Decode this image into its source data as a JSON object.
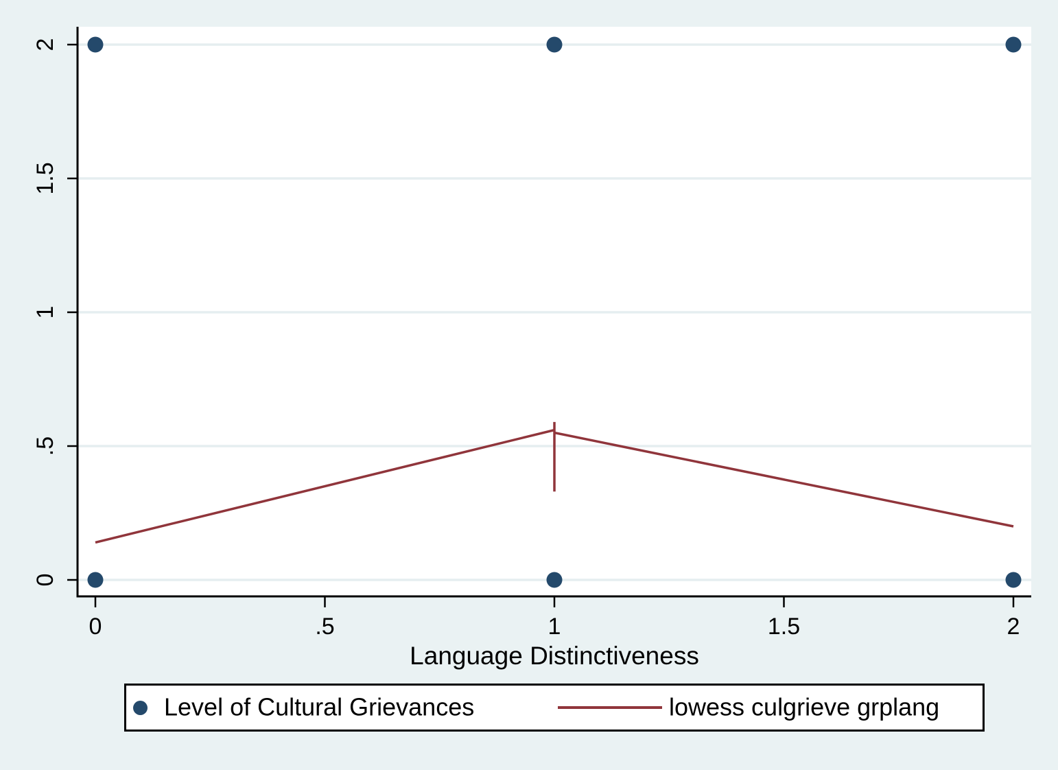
{
  "colors": {
    "background": "#eaf2f3",
    "plot_background": "#ffffff",
    "gridline": "#e5eef0",
    "axis": "#000000",
    "navy": "#24496b",
    "maroon": "#90353b"
  },
  "chart_data": {
    "type": "scatter",
    "title": "",
    "xlabel": "Language Distinctiveness",
    "ylabel": "",
    "xlim": [
      0,
      2
    ],
    "ylim": [
      0,
      2
    ],
    "grid": "horizontal",
    "legend_position": "bottom",
    "x_ticks": {
      "values": [
        0,
        0.5,
        1,
        1.5,
        2
      ],
      "labels": [
        "0",
        ".5",
        "1",
        "1.5",
        "2"
      ]
    },
    "y_ticks": {
      "values": [
        0,
        0.5,
        1,
        1.5,
        2
      ],
      "labels": [
        "0",
        ".5",
        "1",
        "1.5",
        "2"
      ]
    },
    "series": [
      {
        "name": "Level of Cultural Grievances",
        "type": "scatter",
        "color": "#24496b",
        "points": [
          [
            0,
            0
          ],
          [
            0,
            2
          ],
          [
            1,
            0
          ],
          [
            1,
            2
          ],
          [
            2,
            0
          ],
          [
            2,
            2
          ]
        ]
      },
      {
        "name": "lowess culgrieve grplang",
        "type": "line",
        "color": "#90353b",
        "points": [
          [
            0,
            0.14
          ],
          [
            1,
            0.56
          ],
          [
            1,
            0.59
          ],
          [
            1,
            0.33
          ],
          [
            1,
            0.55
          ],
          [
            2,
            0.2
          ]
        ]
      }
    ]
  }
}
